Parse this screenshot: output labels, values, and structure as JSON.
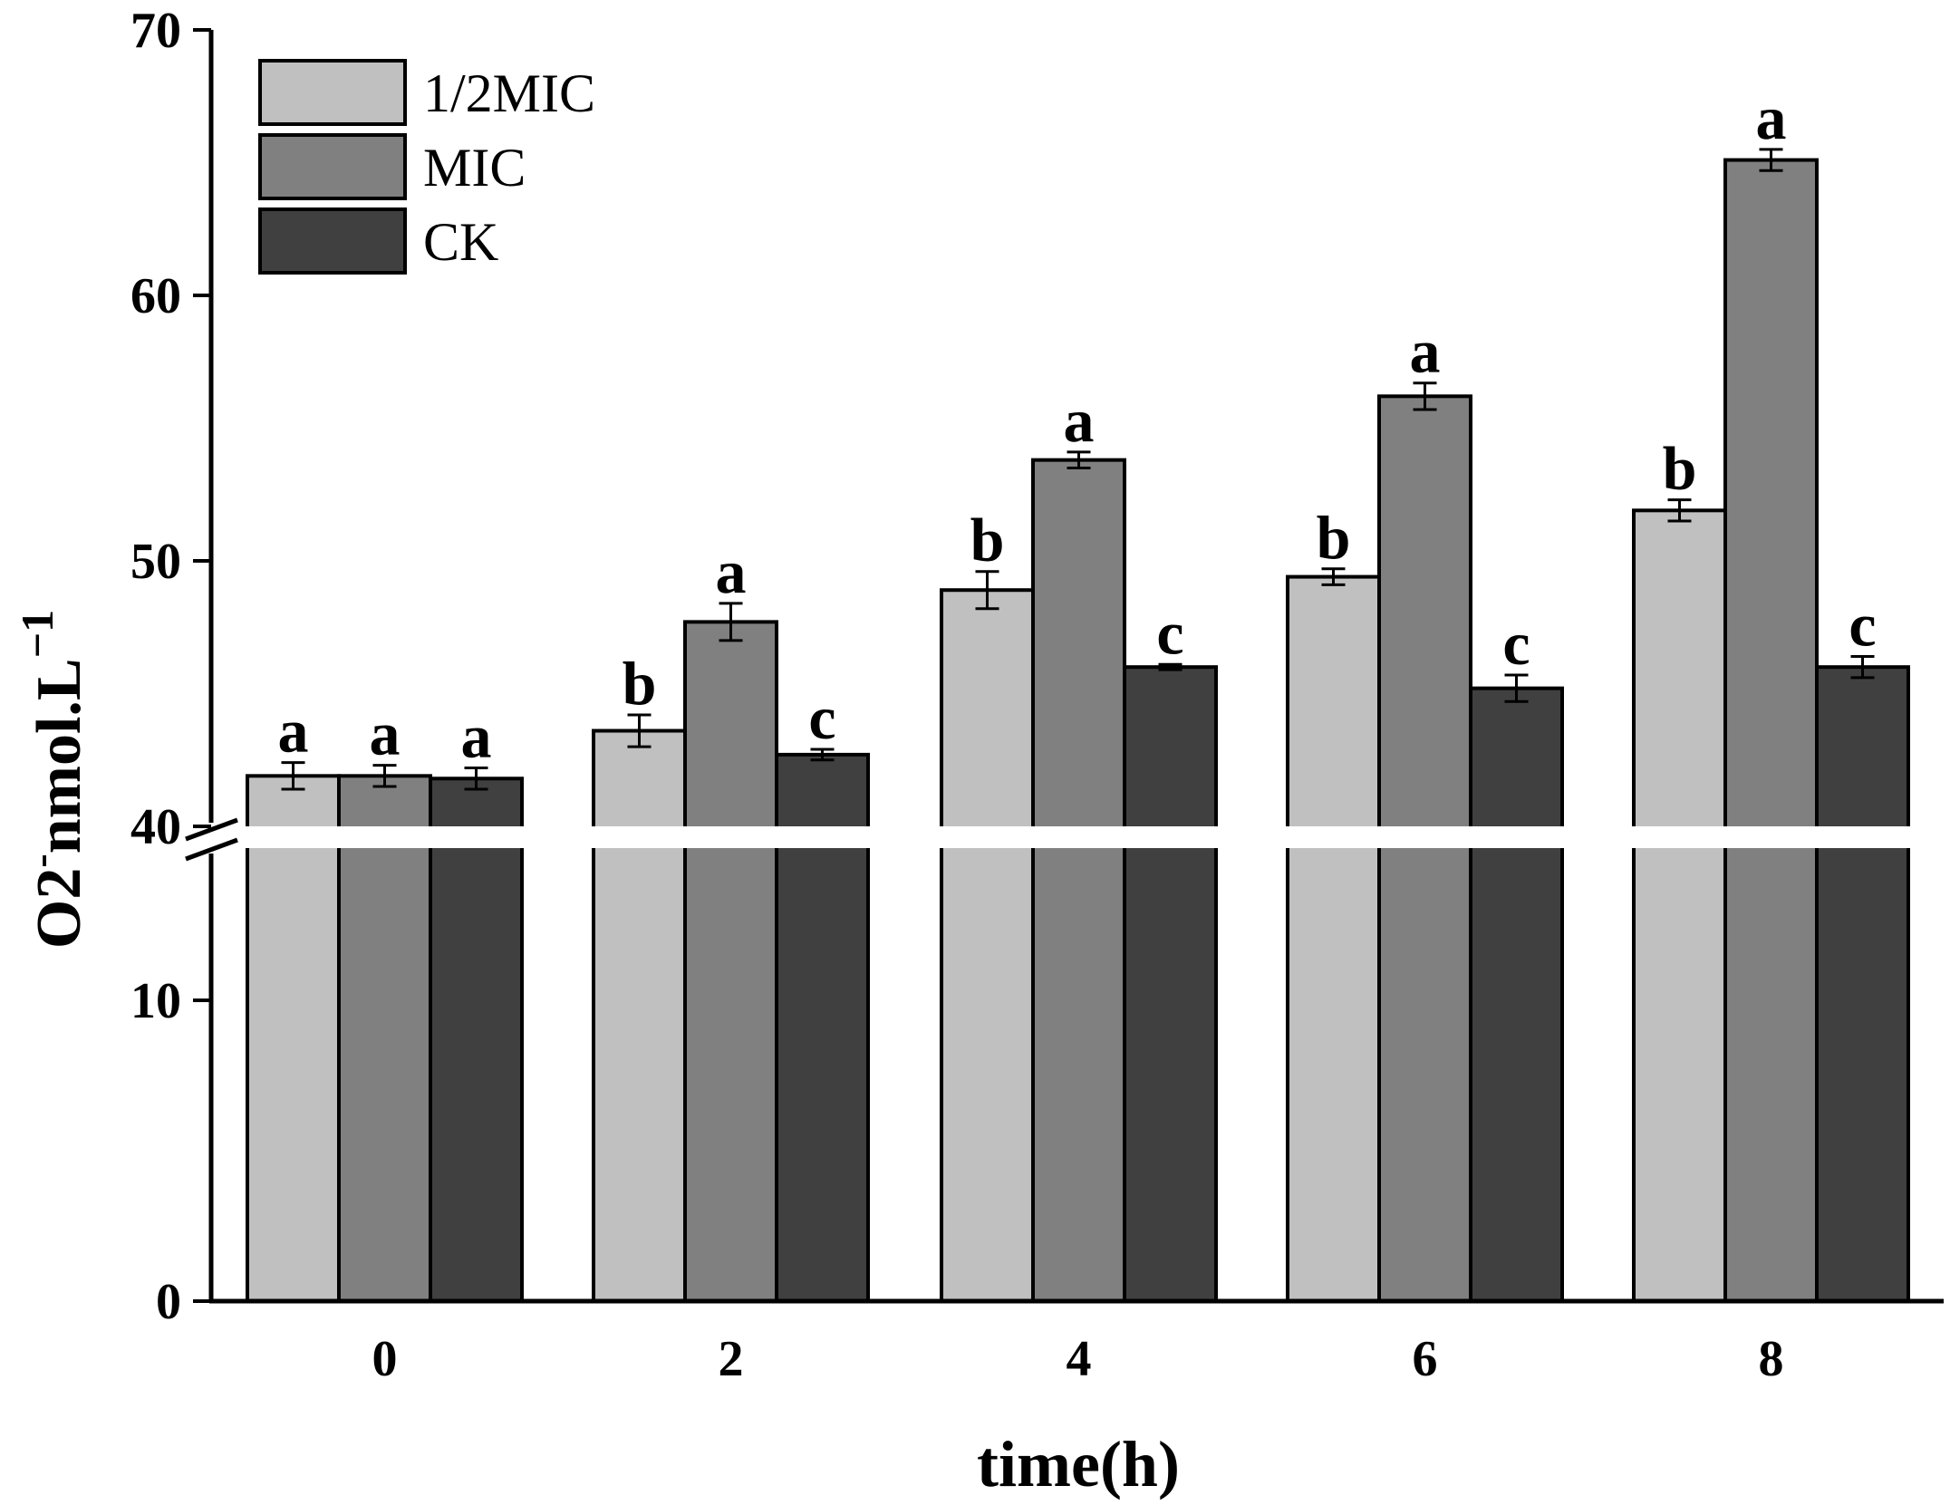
{
  "chart_data": {
    "type": "bar",
    "title": "",
    "xlabel": "time(h)",
    "ylabel": "O2",
    "ylabel_superscript": "-",
    "ylabel_rest": "nmol.L",
    "ylabel_exponent": "−1",
    "categories": [
      "0",
      "2",
      "4",
      "6",
      "8"
    ],
    "y_break": {
      "lower": [
        0,
        15
      ],
      "upper": [
        40,
        70
      ],
      "lower_ticks": [
        "0",
        "10"
      ],
      "upper_ticks": [
        "40",
        "50",
        "60",
        "70"
      ]
    },
    "series": [
      {
        "name": "1/2MIC",
        "color": "#c0c0c0",
        "values": [
          41.9,
          43.6,
          48.9,
          49.4,
          51.9
        ],
        "errors": [
          0.5,
          0.6,
          0.7,
          0.3,
          0.4
        ],
        "labels": [
          "a",
          "b",
          "b",
          "b",
          "b"
        ]
      },
      {
        "name": "MIC",
        "color": "#808080",
        "values": [
          41.9,
          47.7,
          53.8,
          56.2,
          65.1
        ],
        "errors": [
          0.4,
          0.7,
          0.3,
          0.5,
          0.4
        ],
        "labels": [
          "a",
          "a",
          "a",
          "a",
          "a"
        ]
      },
      {
        "name": "CK",
        "color": "#404040",
        "values": [
          41.8,
          42.7,
          46.0,
          45.2,
          46.0
        ],
        "errors": [
          0.4,
          0.2,
          0.1,
          0.5,
          0.4
        ],
        "labels": [
          "a",
          "c",
          "c",
          "c",
          "c"
        ]
      }
    ],
    "legend_position": "top-left",
    "grid": false
  }
}
